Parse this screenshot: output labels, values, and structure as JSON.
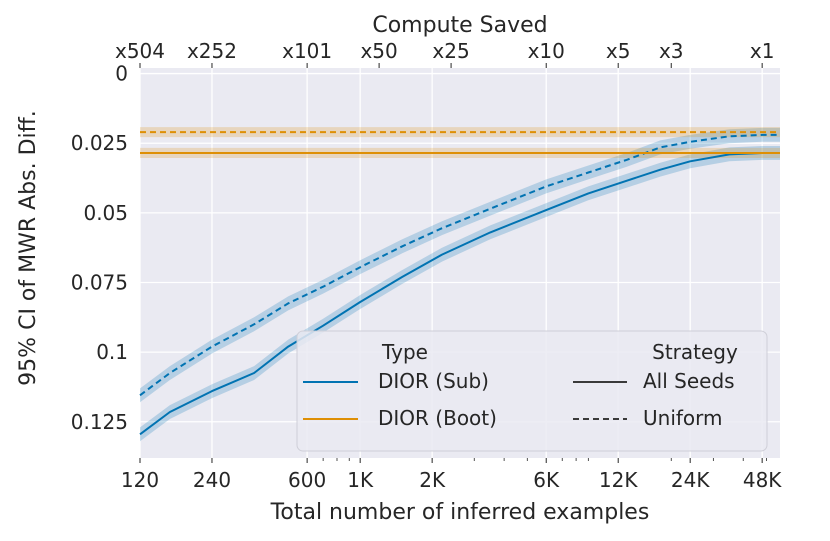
{
  "chart_data": {
    "type": "line",
    "title_top": "Compute Saved",
    "xlabel": "Total number of inferred examples",
    "ylabel": "95% CI of MWR Abs. Diff.",
    "x_scale": "log",
    "xlim": [
      120,
      57000
    ],
    "ylim": [
      0.138,
      -0.002
    ],
    "y_inverted": true,
    "grid": true,
    "x_ticks": [
      {
        "value": 120,
        "label": "120"
      },
      {
        "value": 240,
        "label": "240"
      },
      {
        "value": 600,
        "label": "600"
      },
      {
        "value": 1000,
        "label": "1K"
      },
      {
        "value": 2000,
        "label": "2K"
      },
      {
        "value": 6000,
        "label": "6K"
      },
      {
        "value": 12000,
        "label": "12K"
      },
      {
        "value": 24000,
        "label": "24K"
      },
      {
        "value": 48000,
        "label": "48K"
      }
    ],
    "x_minor_ticks": [
      700,
      800,
      900,
      3000,
      4000,
      5000,
      7000,
      8000,
      9000,
      20000,
      30000,
      40000,
      50000
    ],
    "top_ticks": [
      {
        "value": 120,
        "label": "x504"
      },
      {
        "value": 240,
        "label": "x252"
      },
      {
        "value": 600,
        "label": "x101"
      },
      {
        "value": 1200,
        "label": "x50"
      },
      {
        "value": 2400,
        "label": "x25"
      },
      {
        "value": 6000,
        "label": "x10"
      },
      {
        "value": 12000,
        "label": "x5"
      },
      {
        "value": 20000,
        "label": "x3"
      },
      {
        "value": 48000,
        "label": "x1"
      }
    ],
    "y_ticks": [
      {
        "value": 0,
        "label": "0"
      },
      {
        "value": 0.025,
        "label": "0.025"
      },
      {
        "value": 0.05,
        "label": "0.05"
      },
      {
        "value": 0.075,
        "label": "0.075"
      },
      {
        "value": 0.1,
        "label": "0.1"
      },
      {
        "value": 0.125,
        "label": "0.125"
      }
    ],
    "series": [
      {
        "name": "DIOR (Sub) - All Seeds",
        "color": "#0173b2",
        "style": "solid",
        "band": 0.0025,
        "points": [
          [
            120,
            0.1295
          ],
          [
            160,
            0.1215
          ],
          [
            240,
            0.114
          ],
          [
            360,
            0.1075
          ],
          [
            500,
            0.098
          ],
          [
            700,
            0.0905
          ],
          [
            1000,
            0.082
          ],
          [
            1500,
            0.073
          ],
          [
            2200,
            0.065
          ],
          [
            3500,
            0.057
          ],
          [
            6000,
            0.049
          ],
          [
            9000,
            0.043
          ],
          [
            13000,
            0.0385
          ],
          [
            18000,
            0.0345
          ],
          [
            24000,
            0.0315
          ],
          [
            35000,
            0.029
          ],
          [
            48000,
            0.0285
          ],
          [
            57000,
            0.0285
          ]
        ]
      },
      {
        "name": "DIOR (Sub) - Uniform",
        "color": "#0173b2",
        "style": "dashed",
        "band": 0.0025,
        "points": [
          [
            120,
            0.1155
          ],
          [
            160,
            0.1075
          ],
          [
            240,
            0.098
          ],
          [
            360,
            0.09
          ],
          [
            500,
            0.0825
          ],
          [
            700,
            0.0765
          ],
          [
            1000,
            0.0695
          ],
          [
            1500,
            0.062
          ],
          [
            2200,
            0.0555
          ],
          [
            3500,
            0.0485
          ],
          [
            6000,
            0.0405
          ],
          [
            9000,
            0.0355
          ],
          [
            13000,
            0.031
          ],
          [
            18000,
            0.0265
          ],
          [
            24000,
            0.0245
          ],
          [
            35000,
            0.0225
          ],
          [
            48000,
            0.022
          ],
          [
            57000,
            0.022
          ]
        ]
      },
      {
        "name": "DIOR (Boot) - All Seeds",
        "color": "#de8f05",
        "style": "solid",
        "band": 0.0018,
        "points": [
          [
            120,
            0.0285
          ],
          [
            57000,
            0.0285
          ]
        ]
      },
      {
        "name": "DIOR (Boot) - Uniform",
        "color": "#de8f05",
        "style": "dashed",
        "band": 0.0018,
        "points": [
          [
            120,
            0.021
          ],
          [
            57000,
            0.021
          ]
        ]
      }
    ],
    "legend": {
      "position": "lower-right",
      "type_title": "Type",
      "strategy_title": "Strategy",
      "type_entries": [
        {
          "label": "DIOR (Sub)",
          "color": "#0173b2"
        },
        {
          "label": "DIOR (Boot)",
          "color": "#de8f05"
        }
      ],
      "strategy_entries": [
        {
          "label": "All Seeds",
          "style": "solid",
          "color": "#3a3a3a"
        },
        {
          "label": "Uniform",
          "style": "dashed",
          "color": "#3a3a3a"
        }
      ]
    }
  }
}
